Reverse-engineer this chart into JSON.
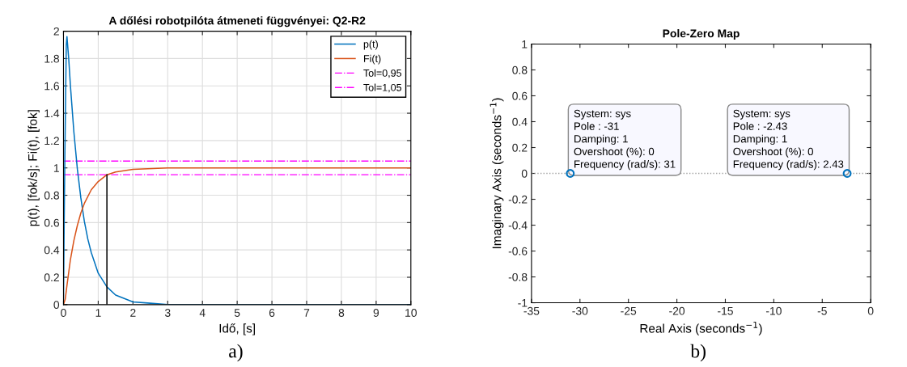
{
  "chart_data": [
    {
      "type": "line",
      "title": "A dőlési robotpilóta átmeneti függvényei: Q2-R2",
      "xlabel": "Idő, [s]",
      "ylabel": "p(t), [fok/s]; Fi(t), [fok]",
      "series": [
        {
          "name": "p(t)",
          "color": "#0072bd",
          "x": [
            0,
            0.02,
            0.04,
            0.06,
            0.08,
            0.1,
            0.15,
            0.2,
            0.3,
            0.4,
            0.5,
            0.6,
            0.7,
            0.8,
            1.0,
            1.25,
            1.5,
            2,
            2.5,
            3,
            4,
            10
          ],
          "values": [
            0,
            0.6,
            1.1,
            1.5,
            1.9,
            1.96,
            1.8,
            1.6,
            1.26,
            0.99,
            0.78,
            0.61,
            0.48,
            0.38,
            0.23,
            0.13,
            0.07,
            0.02,
            0.01,
            0,
            0,
            0
          ]
        },
        {
          "name": "Fi(t)",
          "color": "#d95319",
          "x": [
            0,
            0.05,
            0.1,
            0.2,
            0.3,
            0.4,
            0.5,
            0.6,
            0.8,
            1.0,
            1.25,
            1.5,
            2,
            3,
            10
          ],
          "values": [
            0,
            0.04,
            0.14,
            0.33,
            0.47,
            0.58,
            0.67,
            0.74,
            0.84,
            0.9,
            0.95,
            0.97,
            0.99,
            1,
            1
          ]
        },
        {
          "color": "#000000",
          "x": [
            1.25,
            1.25
          ],
          "values": [
            0,
            0.95
          ]
        }
      ],
      "ref_lines": [
        {
          "axis": "y",
          "value": 0.95,
          "label": "Tol=0,95",
          "color": "#ff00ff",
          "line_style": "dashdot"
        },
        {
          "axis": "y",
          "value": 1.05,
          "label": "Tol=1,05",
          "color": "#ff00ff",
          "line_style": "dashdot"
        }
      ],
      "xlim": [
        0,
        10
      ],
      "xticks": [
        0,
        1,
        2,
        3,
        4,
        5,
        6,
        7,
        8,
        9,
        10
      ],
      "ylim": [
        0,
        2
      ],
      "yticks": [
        0,
        0.2,
        0.4,
        0.6,
        0.8,
        1,
        1.2,
        1.4,
        1.6,
        1.8,
        2
      ],
      "grid": true,
      "legend": "top right",
      "annotations": [
        "a)"
      ]
    },
    {
      "type": "scatter",
      "title": "Pole-Zero Map",
      "xlabel": "Real Axis (seconds$^{−1}$)",
      "ylabel": "Imaginary Axis (seconds$^{−1}$)",
      "x": [
        -31,
        -2.43
      ],
      "values": [
        0,
        0
      ],
      "color": "#0072bd",
      "marker": "circle",
      "ref_lines": [
        {
          "axis": "y",
          "value": 0,
          "color": "#a0a0a0",
          "line_style": "dotted"
        }
      ],
      "xlim": [
        -35,
        0
      ],
      "xticks": [
        -35,
        -30,
        -25,
        -20,
        -15,
        -10,
        -5,
        0
      ],
      "ylim": [
        -1,
        1
      ],
      "yticks": [
        -1,
        -0.8,
        -0.6,
        -0.4,
        -0.2,
        0,
        0.2,
        0.4,
        0.6,
        0.8,
        1
      ],
      "grid": false,
      "annotations": [
        {
          "text": "System: sys\nPole : -31\nDamping: 1\nOvershoot (%): 0\nFrequency (rad/s): 31",
          "x": -31,
          "y": 0
        },
        {
          "text": "System: sys\nPole : -2.43\nDamping: 1\nOvershoot (%): 0\nFrequency (rad/s): 2.43",
          "x": -2.43,
          "y": 0
        },
        "b)"
      ]
    }
  ]
}
